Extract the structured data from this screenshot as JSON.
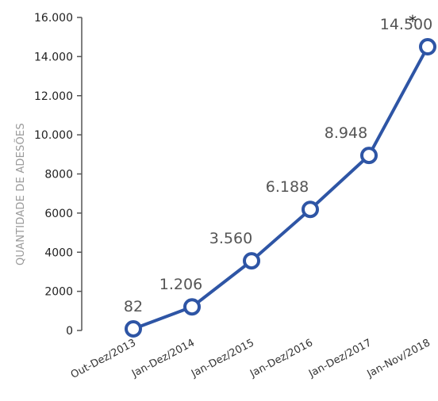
{
  "chart_data": {
    "type": "line",
    "categories": [
      "Out-Dez/2013",
      "Jan-Dez/2014",
      "Jan-Dez/2015",
      "Jan-Dez/2016",
      "Jan-Dez/2017",
      "Jan-Nov/2018"
    ],
    "values": [
      82,
      1206,
      3560,
      6188,
      8948,
      14500
    ],
    "data_labels": [
      "82",
      "1.206",
      "3.560",
      "6.188",
      "8.948",
      "14.500"
    ],
    "annotation": "*",
    "ylabel": "QUANTIDADE DE ADESÕES",
    "yticks": [
      0,
      2000,
      4000,
      6000,
      8000,
      10000,
      12000,
      14000,
      16000
    ],
    "ytick_labels": [
      "0",
      "2000",
      "4000",
      "6000",
      "8000",
      "10.000",
      "12.000",
      "14.000",
      "16.000"
    ],
    "ylim": [
      0,
      16000
    ],
    "grid": false,
    "line_color": "#2e55a5",
    "marker_fill": "#ffffff"
  }
}
